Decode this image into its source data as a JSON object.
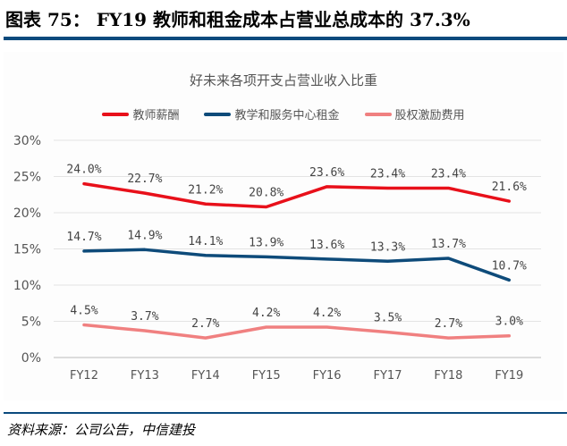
{
  "header": {
    "title": "图表 75：  FY19 教师和租金成本占营业总成本的 37.3%"
  },
  "footer": {
    "source": "资料来源：公司公告，中信建投"
  },
  "chart_data": {
    "type": "line",
    "title": "好未来各项开支占营业收入比重",
    "categories": [
      "FY12",
      "FY13",
      "FY14",
      "FY15",
      "FY16",
      "FY17",
      "FY18",
      "FY19"
    ],
    "yticks": [
      "0%",
      "5%",
      "10%",
      "15%",
      "20%",
      "25%",
      "30%"
    ],
    "ylim": [
      0,
      30
    ],
    "grid": true,
    "legend_position": "top",
    "series": [
      {
        "name": "教师薪酬",
        "color": "#e8101a",
        "values": [
          24.0,
          22.7,
          21.2,
          20.8,
          23.6,
          23.4,
          23.4,
          21.6
        ],
        "labels": [
          "24.0%",
          "22.7%",
          "21.2%",
          "20.8%",
          "23.6%",
          "23.4%",
          "23.4%",
          "21.6%"
        ]
      },
      {
        "name": "教学和服务中心租金",
        "color": "#0e4b7a",
        "values": [
          14.7,
          14.9,
          14.1,
          13.9,
          13.6,
          13.3,
          13.7,
          10.7
        ],
        "labels": [
          "14.7%",
          "14.9%",
          "14.1%",
          "13.9%",
          "13.6%",
          "13.3%",
          "13.7%",
          "10.7%"
        ]
      },
      {
        "name": "股权激励费用",
        "color": "#f08080",
        "values": [
          4.5,
          3.7,
          2.7,
          4.2,
          4.2,
          3.5,
          2.7,
          3.0
        ],
        "labels": [
          "4.5%",
          "3.7%",
          "2.7%",
          "4.2%",
          "4.2%",
          "3.5%",
          "2.7%",
          "3.0%"
        ]
      }
    ]
  }
}
